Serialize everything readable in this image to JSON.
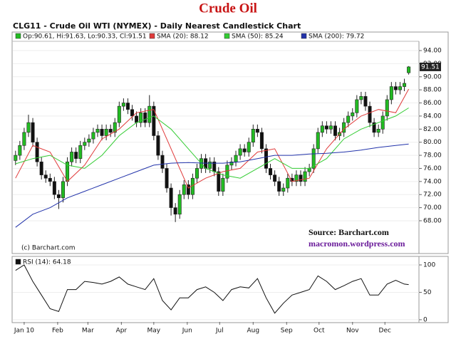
{
  "chart_data": [
    {
      "type": "candlestick",
      "title": "Crude Oil",
      "subtitle": "CLG11 - Crude Oil WTI (NYMEX) - Daily Nearest Candlestick Chart",
      "name": "Op:90.61, Hi:91.63, Lo:90.33, Cl:91.51",
      "color_up": "#22bb22",
      "color_down": "#111111",
      "x": [
        -8,
        -4,
        0,
        4,
        8,
        12,
        16,
        20,
        24,
        28,
        32,
        36,
        40,
        44,
        48,
        52,
        56,
        60,
        64,
        68,
        72,
        76,
        80,
        84,
        88,
        92,
        96,
        100,
        104,
        108,
        112,
        116,
        120,
        124,
        128,
        132,
        136,
        140,
        144,
        148,
        152,
        156,
        160,
        164,
        168,
        172,
        176,
        180,
        184,
        188,
        192,
        196,
        200,
        204,
        208,
        212,
        216,
        220,
        224,
        228,
        232,
        236,
        240,
        244,
        248,
        252,
        256,
        260,
        264,
        268,
        272,
        276,
        280,
        284,
        288,
        292,
        296,
        300,
        304,
        308,
        312,
        316,
        320,
        324,
        328,
        332,
        336,
        340,
        344,
        348,
        352,
        356
      ],
      "open": [
        77.2,
        78,
        79.5,
        81.5,
        83,
        80,
        77,
        75,
        74.5,
        74,
        72,
        71.5,
        74,
        77,
        78.5,
        77.5,
        79.5,
        80,
        80.5,
        81.5,
        82,
        81,
        82,
        81.5,
        83,
        85.5,
        86,
        85,
        84,
        83,
        84.5,
        83,
        85.5,
        81,
        78,
        76,
        73,
        70,
        69,
        72,
        73.5,
        72,
        74.5,
        76,
        77.5,
        76,
        77,
        75.5,
        72.5,
        74.5,
        76.5,
        77,
        78,
        79,
        78.5,
        80,
        82,
        81.5,
        79,
        76,
        75,
        74,
        72.5,
        73,
        74.5,
        74,
        75,
        74,
        75.5,
        76,
        79,
        81.5,
        82.5,
        82,
        82.5,
        81,
        81.5,
        83,
        84,
        84.5,
        86.5,
        87,
        85.5,
        83,
        81.5,
        82,
        84,
        86.5,
        88.5,
        88,
        88.5,
        90.61
      ],
      "high": [
        78.7,
        80.2,
        82.2,
        84.2,
        83.7,
        80.7,
        77.7,
        75.7,
        75.2,
        74.7,
        72.7,
        74.7,
        77.7,
        79.2,
        79.2,
        80.2,
        80.7,
        81.2,
        82.2,
        82.7,
        82.7,
        82.7,
        82.7,
        83.7,
        86.2,
        86.7,
        86.7,
        85.7,
        84.7,
        85.2,
        85.2,
        87.2,
        86.2,
        81.7,
        78.7,
        76.7,
        73.7,
        70.7,
        72.7,
        74.2,
        74.2,
        75.2,
        76.7,
        78.2,
        78.2,
        77.7,
        77.7,
        76.2,
        75.2,
        77.2,
        77.7,
        78.7,
        79.7,
        79.7,
        80.7,
        82.7,
        82.7,
        82.2,
        79.7,
        76.7,
        75.7,
        74.7,
        73.7,
        75.2,
        75.2,
        75.7,
        75.7,
        76.2,
        76.7,
        79.7,
        82.2,
        83.2,
        83.2,
        83.2,
        83.2,
        82.2,
        83.7,
        84.7,
        85.2,
        87.2,
        87.7,
        87.7,
        86.2,
        83.7,
        82.7,
        84.7,
        87.2,
        89.2,
        89.2,
        89.2,
        89.7,
        91.63
      ],
      "low": [
        76.5,
        77.3,
        78.8,
        80.8,
        79.3,
        76.3,
        74.3,
        73.8,
        73.3,
        71.3,
        69.8,
        70.8,
        73.3,
        76.3,
        76.8,
        76.8,
        78.8,
        79.3,
        79.8,
        80.8,
        80.3,
        80.3,
        80.8,
        80.8,
        82.3,
        84.8,
        84.3,
        83.3,
        82.3,
        82.3,
        82.3,
        82.3,
        80.3,
        77.3,
        75.3,
        72.3,
        68.8,
        67.8,
        68.3,
        71.3,
        71.3,
        71.3,
        73.8,
        75.3,
        75.3,
        75.3,
        74.8,
        71.8,
        71.8,
        73.8,
        75.8,
        76.3,
        77.3,
        77.8,
        77.8,
        79.3,
        80.8,
        78.3,
        75.3,
        74.3,
        73.3,
        71.8,
        71.8,
        72.3,
        73.3,
        73.3,
        73.3,
        73.3,
        74.8,
        75.3,
        78.3,
        80.8,
        81.3,
        81.3,
        80.3,
        80.3,
        80.8,
        82.3,
        83.3,
        83.8,
        85.8,
        84.8,
        82.3,
        80.8,
        80.8,
        81.3,
        83.3,
        85.8,
        87.3,
        87.3,
        87.8,
        90.33
      ],
      "close": [
        78,
        79.5,
        81.5,
        83,
        80,
        77,
        75,
        74.5,
        74,
        72,
        71.5,
        74,
        77,
        78.5,
        77.5,
        79.5,
        80,
        80.5,
        81.5,
        82,
        81,
        82,
        81.5,
        83,
        85.5,
        86,
        85,
        84,
        83,
        84.5,
        83,
        85.5,
        81,
        78,
        76,
        73,
        70,
        69,
        72,
        73.5,
        72,
        74.5,
        76,
        77.5,
        76,
        77,
        75.5,
        72.5,
        74.5,
        76.5,
        77,
        78,
        79,
        78.5,
        80,
        82,
        81.5,
        79,
        76,
        75,
        74,
        72.5,
        73,
        74.5,
        74,
        75,
        74,
        75.5,
        76,
        79,
        81.5,
        82.5,
        82,
        82.5,
        81,
        81.5,
        83,
        84,
        84.5,
        86.5,
        87,
        85.5,
        83,
        81.5,
        82,
        84,
        86.5,
        88.5,
        88,
        88.5,
        89,
        91.51
      ],
      "series": [
        {
          "name": "SMA (20): 88.12",
          "color": "#e03a3a",
          "x": [
            -8,
            8,
            24,
            40,
            56,
            72,
            88,
            104,
            120,
            136,
            152,
            168,
            184,
            200,
            216,
            232,
            248,
            264,
            280,
            296,
            312,
            328,
            344,
            356
          ],
          "values": [
            74.5,
            79.5,
            78.5,
            74,
            76.5,
            80.5,
            82,
            84.5,
            85,
            79,
            73,
            74.5,
            75.5,
            76,
            78.5,
            79,
            74,
            74.5,
            79,
            82,
            84,
            85,
            84.5,
            88.12
          ]
        },
        {
          "name": "SMA (50): 85.24",
          "color": "#33cc33",
          "x": [
            -8,
            8,
            24,
            40,
            56,
            72,
            88,
            104,
            120,
            136,
            152,
            168,
            184,
            200,
            216,
            232,
            248,
            264,
            280,
            296,
            312,
            328,
            344,
            356
          ],
          "values": [
            76.7,
            77.5,
            78,
            76.5,
            76,
            78,
            81,
            83,
            84,
            82,
            79,
            76,
            75,
            74.5,
            76,
            77.5,
            76,
            76,
            77.5,
            80.5,
            82,
            83,
            84,
            85.24
          ]
        },
        {
          "name": "SMA (200): 79.72",
          "color": "#2233aa",
          "x": [
            -8,
            8,
            24,
            40,
            56,
            72,
            88,
            104,
            120,
            136,
            152,
            168,
            184,
            200,
            216,
            232,
            248,
            264,
            280,
            296,
            312,
            328,
            344,
            356
          ],
          "values": [
            67,
            69,
            70,
            71.5,
            72.5,
            73.5,
            74.5,
            75.5,
            76.5,
            76.8,
            76.9,
            76.8,
            76.8,
            77,
            77.5,
            78,
            78,
            78.2,
            78.3,
            78.5,
            78.8,
            79.2,
            79.5,
            79.72
          ]
        }
      ],
      "xlim": [
        -10.5,
        365.5
      ],
      "ylim": [
        63.1,
        95.2
      ],
      "yticks": [
        {
          "value": 68,
          "label": "68.00"
        },
        {
          "value": 70,
          "label": "70.00"
        },
        {
          "value": 72,
          "label": "72.00"
        },
        {
          "value": 74,
          "label": "74.00"
        },
        {
          "value": 76,
          "label": "76.00"
        },
        {
          "value": 78,
          "label": "78.00"
        },
        {
          "value": 80,
          "label": "80.00"
        },
        {
          "value": 82,
          "label": "82.00"
        },
        {
          "value": 84,
          "label": "84.00"
        },
        {
          "value": 86,
          "label": "86.00"
        },
        {
          "value": 88,
          "label": "88.00"
        },
        {
          "value": 90,
          "label": "90.00"
        },
        {
          "value": 92,
          "label": "92.00"
        },
        {
          "value": 94,
          "label": "94.00"
        }
      ],
      "annotations": [
        "(c) Barchart.com",
        "Source:   Barchart.com",
        "macromon.wordpress.com"
      ]
    },
    {
      "type": "line",
      "series": [
        {
          "name": "RSI (14): 64.18",
          "color": "#111111",
          "x": [
            -8,
            0,
            8,
            16,
            24,
            32,
            40,
            48,
            56,
            64,
            72,
            80,
            88,
            96,
            104,
            112,
            120,
            128,
            136,
            144,
            152,
            160,
            168,
            176,
            184,
            192,
            200,
            208,
            216,
            224,
            232,
            240,
            248,
            256,
            264,
            272,
            280,
            288,
            296,
            304,
            312,
            320,
            328,
            336,
            344,
            352,
            356
          ],
          "values": [
            90,
            100,
            70,
            45,
            20,
            15,
            55,
            55,
            70,
            68,
            65,
            70,
            78,
            65,
            60,
            55,
            75,
            35,
            18,
            40,
            40,
            55,
            60,
            50,
            35,
            55,
            60,
            58,
            75,
            40,
            12,
            30,
            45,
            50,
            55,
            80,
            70,
            55,
            62,
            70,
            75,
            45,
            45,
            65,
            72,
            65,
            64.18
          ]
        }
      ],
      "xlim": [
        -10.5,
        365.5
      ],
      "ylim": [
        -4,
        113
      ],
      "yticks": [
        0,
        50,
        100
      ],
      "xticks": [
        {
          "value": 0,
          "label": "Jan 10"
        },
        {
          "value": 31,
          "label": "Feb"
        },
        {
          "value": 59,
          "label": "Mar"
        },
        {
          "value": 90,
          "label": "Apr"
        },
        {
          "value": 120,
          "label": "May"
        },
        {
          "value": 151,
          "label": "Jun"
        },
        {
          "value": 181,
          "label": "Jul"
        },
        {
          "value": 212,
          "label": "Aug"
        },
        {
          "value": 243,
          "label": "Sep"
        },
        {
          "value": 273,
          "label": "Oct"
        },
        {
          "value": 304,
          "label": "Nov"
        },
        {
          "value": 334,
          "label": "Dec"
        }
      ]
    }
  ]
}
